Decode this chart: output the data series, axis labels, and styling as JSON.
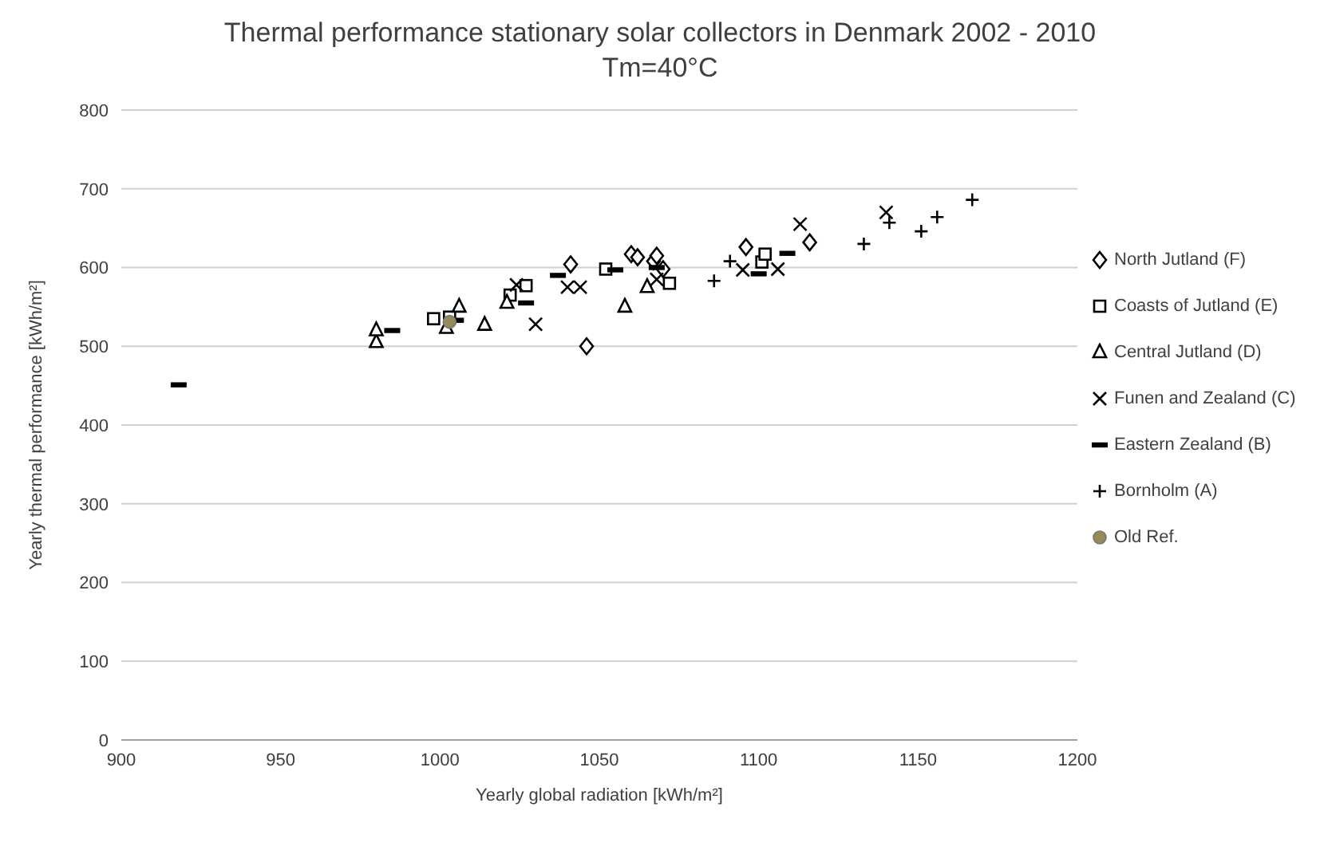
{
  "chart_data": {
    "type": "scatter",
    "title": "Thermal performance stationary solar collectors in Denmark 2002 - 2010",
    "subtitle": "Tm=40°C",
    "xlabel": "Yearly global radiation [kWh/m²]",
    "ylabel": "Yearly thermal performance [kWh/m²]",
    "xlim": [
      900,
      1200
    ],
    "xticks": [
      900,
      950,
      1000,
      1050,
      1100,
      1150,
      1200
    ],
    "ylim": [
      0,
      800
    ],
    "yticks": [
      0,
      100,
      200,
      300,
      400,
      500,
      600,
      700,
      800
    ],
    "grid": "y",
    "legend": "right",
    "series": [
      {
        "name": "North Jutland (F)",
        "color": "#000000",
        "marker": "diamond",
        "x": [
          1041,
          1046,
          1060,
          1062,
          1067,
          1068,
          1070,
          1096,
          1116
        ],
        "values": [
          604,
          500,
          617,
          613,
          608,
          615,
          598,
          626,
          632
        ]
      },
      {
        "name": "Coasts of Jutland (E)",
        "color": "#000000",
        "marker": "square",
        "x": [
          998,
          1003,
          1022,
          1027,
          1052,
          1072,
          1101,
          1102
        ],
        "values": [
          535,
          537,
          565,
          577,
          598,
          580,
          607,
          617
        ]
      },
      {
        "name": "Central Jutland (D)",
        "color": "#000000",
        "marker": "triangle",
        "x": [
          980,
          980,
          1002,
          1006,
          1014,
          1021,
          1058,
          1065
        ],
        "values": [
          505,
          520,
          523,
          550,
          527,
          555,
          550,
          575
        ]
      },
      {
        "name": "Funen and Zealand (C)",
        "color": "#000000",
        "marker": "cross",
        "x": [
          1024,
          1030,
          1040,
          1044,
          1068,
          1095,
          1106,
          1113,
          1140
        ],
        "values": [
          578,
          528,
          575,
          575,
          585,
          597,
          598,
          655,
          670
        ]
      },
      {
        "name": "Eastern Zealand (B)",
        "color": "#000000",
        "x": [
          918,
          985,
          1005,
          1027,
          1037,
          1055,
          1068,
          1100,
          1109
        ],
        "values": [
          451,
          520,
          533,
          555,
          590,
          597,
          600,
          592,
          618
        ]
      },
      {
        "name": "Bornholm (A)",
        "color": "#000000",
        "marker": "plus",
        "x": [
          1086,
          1091,
          1133,
          1141,
          1151,
          1156,
          1167
        ],
        "values": [
          583,
          608,
          630,
          657,
          646,
          664,
          686
        ]
      },
      {
        "name": "Old Ref.",
        "color": "#968a5a",
        "marker": "circle",
        "x": [
          1003
        ],
        "values": [
          531
        ]
      }
    ]
  }
}
